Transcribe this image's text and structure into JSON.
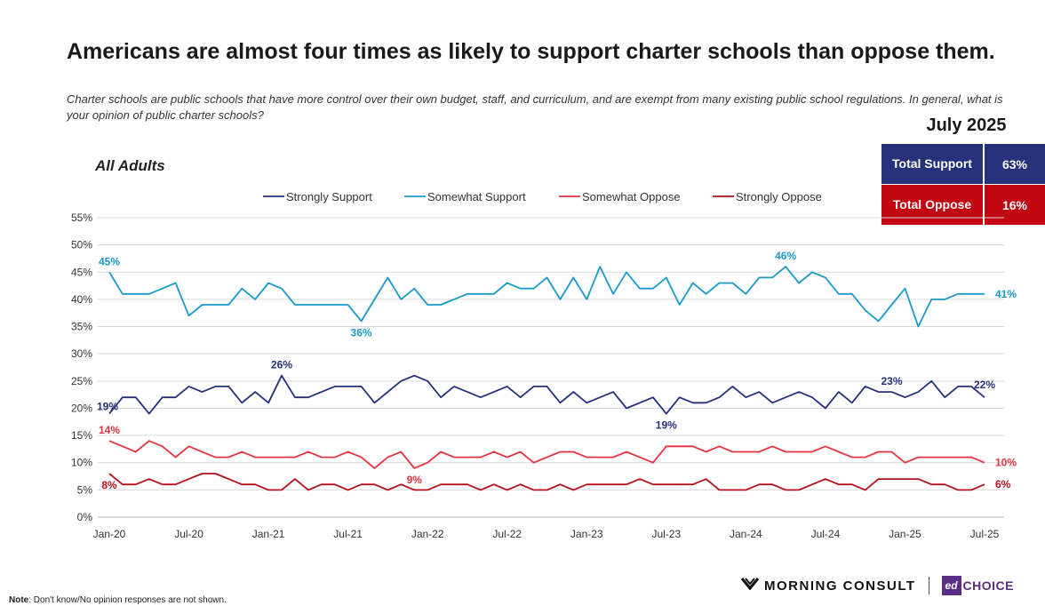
{
  "title": "Americans are almost four times as likely to support charter schools than oppose them.",
  "subtitle": "Charter schools are public schools that have more control over their own budget, staff, and curriculum, and are exempt from many existing public school regulations. In general, what is your opinion of public charter schools?",
  "summary": {
    "period": "July 2025",
    "support_label": "Total Support",
    "support_value": "63%",
    "oppose_label": "Total Oppose",
    "oppose_value": "16%",
    "support_color": "#27307a",
    "oppose_color": "#c20612"
  },
  "panel_label": "All Adults",
  "brand": {
    "morning_consult": "MORNING CONSULT",
    "ed": "ed",
    "choice": "CHOICE"
  },
  "note": {
    "bold": "Note",
    "text": ": Don't know/No opinion responses are not shown."
  },
  "chart_data": {
    "type": "line",
    "x_ticks": [
      "Jan-20",
      "Jul-20",
      "Jan-21",
      "Jul-21",
      "Jan-22",
      "Jul-22",
      "Jan-23",
      "Jul-23",
      "Jan-24",
      "Jul-24",
      "Jan-25",
      "Jul-25"
    ],
    "x_range": [
      "Jan-20",
      "Jul-25"
    ],
    "y_ticks": [
      "0%",
      "5%",
      "10%",
      "15%",
      "20%",
      "25%",
      "30%",
      "35%",
      "40%",
      "45%",
      "50%",
      "55%"
    ],
    "ylim": [
      0,
      55
    ],
    "grid": true,
    "legend_position": "top",
    "series": [
      {
        "name": "Strongly Support",
        "color": "#27307a",
        "values": [
          19,
          22,
          22,
          19,
          22,
          22,
          24,
          23,
          24,
          24,
          21,
          23,
          21,
          26,
          22,
          22,
          23,
          24,
          24,
          24,
          21,
          23,
          25,
          26,
          25,
          22,
          24,
          23,
          22,
          23,
          24,
          22,
          24,
          24,
          21,
          23,
          21,
          22,
          23,
          20,
          21,
          22,
          19,
          22,
          21,
          21,
          22,
          24,
          22,
          23,
          21,
          22,
          23,
          22,
          20,
          23,
          21,
          24,
          23,
          23,
          22,
          23,
          25,
          22,
          24,
          24,
          22
        ],
        "labels": [
          {
            "index": 0,
            "text": "19%",
            "pos": "left"
          },
          {
            "index": 13,
            "text": "26%",
            "pos": "above"
          },
          {
            "index": 42,
            "text": "19%",
            "pos": "below"
          },
          {
            "index": 59,
            "text": "23%",
            "pos": "above"
          },
          {
            "index": 66,
            "text": "22%",
            "pos": "aboveleft"
          }
        ]
      },
      {
        "name": "Somewhat Support",
        "color": "#1b9ac9",
        "values": [
          45,
          41,
          41,
          41,
          42,
          43,
          37,
          39,
          39,
          39,
          42,
          40,
          43,
          42,
          39,
          39,
          39,
          39,
          39,
          36,
          40,
          44,
          40,
          42,
          39,
          39,
          40,
          41,
          41,
          41,
          43,
          42,
          42,
          44,
          40,
          44,
          40,
          46,
          41,
          45,
          42,
          42,
          44,
          39,
          43,
          41,
          43,
          43,
          41,
          44,
          44,
          46,
          43,
          45,
          44,
          41,
          41,
          38,
          36,
          39,
          42,
          35,
          40,
          40,
          41,
          41,
          41
        ],
        "labels": [
          {
            "index": 0,
            "text": "45%",
            "pos": "above"
          },
          {
            "index": 19,
            "text": "36%",
            "pos": "below"
          },
          {
            "index": 51,
            "text": "46%",
            "pos": "above"
          },
          {
            "index": 66,
            "text": "41%",
            "pos": "right"
          }
        ]
      },
      {
        "name": "Somewhat Oppose",
        "color": "#e5333f",
        "values": [
          14,
          13,
          12,
          14,
          13,
          11,
          13,
          12,
          11,
          11,
          12,
          11,
          11,
          11,
          11,
          12,
          11,
          11,
          12,
          11,
          9,
          11,
          12,
          9,
          10,
          12,
          11,
          11,
          11,
          12,
          11,
          12,
          10,
          11,
          12,
          12,
          11,
          11,
          11,
          12,
          11,
          10,
          13,
          13,
          13,
          12,
          13,
          12,
          12,
          12,
          13,
          12,
          12,
          12,
          13,
          12,
          11,
          11,
          12,
          12,
          10,
          11,
          11,
          11,
          11,
          11,
          10
        ],
        "labels": [
          {
            "index": 0,
            "text": "14%",
            "pos": "above"
          },
          {
            "index": 23,
            "text": "9%",
            "pos": "below"
          },
          {
            "index": 66,
            "text": "10%",
            "pos": "right"
          }
        ]
      },
      {
        "name": "Strongly Oppose",
        "color": "#b5101a",
        "values": [
          8,
          6,
          6,
          7,
          6,
          6,
          7,
          8,
          8,
          7,
          6,
          6,
          5,
          5,
          7,
          5,
          6,
          6,
          5,
          6,
          6,
          5,
          6,
          5,
          5,
          6,
          6,
          6,
          5,
          6,
          5,
          6,
          5,
          5,
          6,
          5,
          6,
          6,
          6,
          6,
          7,
          6,
          6,
          6,
          6,
          7,
          5,
          5,
          5,
          6,
          6,
          5,
          5,
          6,
          7,
          6,
          6,
          5,
          7,
          7,
          7,
          7,
          6,
          6,
          5,
          5,
          6
        ],
        "labels": [
          {
            "index": 0,
            "text": "8%",
            "pos": "below"
          },
          {
            "index": 66,
            "text": "6%",
            "pos": "right"
          }
        ]
      }
    ]
  }
}
